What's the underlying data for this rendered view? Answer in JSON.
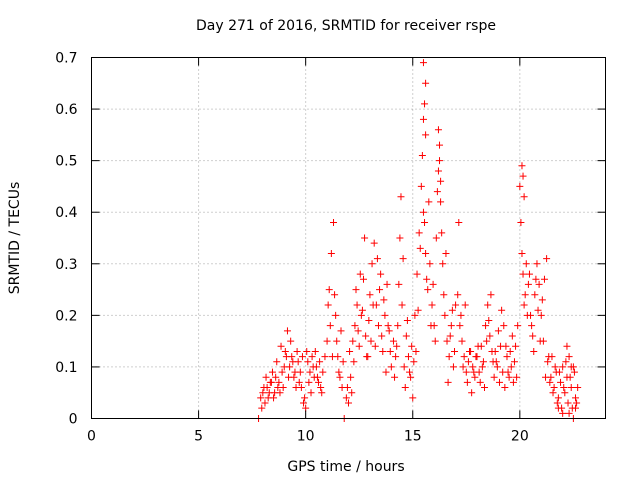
{
  "chart_data": {
    "type": "scatter",
    "title": "Day 271 of 2016, SRMTID for receiver rspe",
    "xlabel": "GPS time / hours",
    "ylabel": "SRMTID / TECUs",
    "xlim": [
      0,
      24
    ],
    "ylim": [
      0,
      0.7
    ],
    "xticks": [
      0,
      5,
      10,
      15,
      20
    ],
    "yticks": [
      0,
      0.1,
      0.2,
      0.3,
      0.4,
      0.5,
      0.6,
      0.7
    ],
    "xtick_labels": [
      "0",
      "5",
      "10",
      "15",
      "20"
    ],
    "ytick_labels": [
      "0",
      "0.1",
      "0.2",
      "0.3",
      "0.4",
      "0.5",
      "0.6",
      "0.7"
    ],
    "grid": true,
    "marker": "plus",
    "color": "#ff0000",
    "series": [
      {
        "x": [
          7.8,
          11.8,
          7.9,
          8.0,
          8.1,
          8.2,
          8.3,
          8.4,
          8.5,
          8.6,
          8.7,
          8.8,
          8.9,
          9.0,
          9.1,
          9.2,
          9.3,
          9.4,
          9.5,
          9.6,
          9.7,
          9.8,
          9.9,
          10.0,
          10.1,
          10.2,
          10.3,
          10.4,
          10.5,
          10.6,
          10.7,
          10.8,
          10.9,
          7.95,
          8.05,
          8.15,
          8.25,
          8.35,
          8.45,
          8.55,
          8.65,
          8.75,
          8.85,
          8.95,
          9.05,
          9.15,
          9.25,
          9.35,
          9.45,
          9.55,
          9.65,
          9.75,
          9.85,
          9.95,
          10.05,
          10.15,
          10.25,
          10.35,
          10.45,
          10.55,
          10.65,
          10.75,
          11.0,
          11.1,
          11.2,
          11.3,
          11.4,
          11.5,
          11.6,
          11.7,
          11.9,
          12.0,
          12.1,
          12.2,
          12.3,
          12.4,
          12.5,
          12.6,
          12.7,
          12.8,
          12.9,
          13.0,
          13.1,
          13.2,
          13.3,
          13.4,
          13.5,
          13.6,
          13.7,
          13.8,
          13.9,
          14.0,
          11.05,
          11.15,
          11.25,
          11.35,
          11.45,
          11.55,
          11.65,
          11.75,
          11.95,
          12.05,
          12.15,
          12.25,
          12.35,
          12.45,
          12.55,
          12.65,
          12.75,
          12.85,
          12.95,
          13.05,
          13.15,
          13.25,
          13.35,
          13.45,
          13.55,
          13.65,
          13.75,
          13.85,
          13.95,
          14.1,
          14.2,
          14.3,
          14.4,
          14.5,
          14.6,
          14.7,
          14.8,
          14.9,
          15.0,
          15.1,
          15.2,
          15.3,
          15.4,
          15.5,
          15.6,
          15.7,
          15.8,
          15.9,
          16.0,
          16.1,
          16.2,
          16.3,
          16.4,
          16.5,
          16.6,
          16.7,
          16.8,
          16.9,
          17.0,
          14.15,
          14.25,
          14.35,
          14.45,
          14.55,
          14.65,
          14.75,
          14.85,
          14.95,
          15.05,
          15.15,
          15.25,
          15.35,
          15.45,
          15.55,
          15.65,
          15.75,
          15.85,
          15.95,
          16.05,
          16.15,
          16.25,
          16.35,
          16.45,
          16.55,
          16.65,
          16.75,
          16.85,
          16.95,
          15.5,
          15.55,
          15.6,
          15.5,
          15.6,
          16.2,
          16.25,
          16.3,
          17.1,
          17.2,
          17.3,
          17.4,
          17.5,
          17.6,
          17.7,
          17.8,
          17.9,
          18.0,
          18.1,
          18.2,
          18.3,
          18.4,
          18.5,
          18.6,
          18.7,
          18.8,
          18.9,
          19.0,
          19.1,
          19.2,
          19.3,
          19.4,
          19.5,
          19.6,
          19.7,
          19.8,
          19.9,
          17.15,
          17.25,
          17.35,
          17.45,
          17.55,
          17.65,
          17.75,
          17.85,
          17.95,
          18.05,
          18.15,
          18.25,
          18.35,
          18.45,
          18.55,
          18.65,
          18.75,
          18.85,
          18.95,
          19.05,
          19.15,
          19.25,
          19.35,
          19.45,
          19.55,
          19.65,
          19.75,
          19.85,
          20.0,
          20.05,
          20.1,
          20.15,
          20.2,
          20.3,
          20.4,
          20.5,
          20.6,
          20.7,
          20.8,
          20.9,
          21.0,
          21.1,
          21.2,
          21.3,
          21.4,
          21.5,
          21.6,
          21.7,
          21.8,
          21.9,
          22.0,
          22.1,
          22.2,
          22.3,
          22.4,
          22.5,
          22.6,
          22.7,
          20.25,
          20.35,
          20.45,
          20.55,
          20.65,
          20.75,
          20.85,
          20.95,
          21.05,
          21.15,
          21.25,
          21.35,
          21.45,
          21.55,
          21.65,
          21.75,
          21.85,
          21.95,
          22.05,
          22.15,
          22.25,
          22.35,
          22.45,
          22.55,
          22.65,
          20.1,
          20.15,
          20.2,
          22.3,
          22.5,
          22.6,
          22.0,
          21.8,
          22.2,
          22.4
        ],
        "y": [
          0.0,
          0.0,
          0.04,
          0.05,
          0.03,
          0.06,
          0.05,
          0.07,
          0.04,
          0.08,
          0.06,
          0.05,
          0.09,
          0.1,
          0.12,
          0.08,
          0.15,
          0.11,
          0.09,
          0.13,
          0.07,
          0.06,
          0.03,
          0.02,
          0.11,
          0.09,
          0.12,
          0.08,
          0.1,
          0.07,
          0.06,
          0.09,
          0.12,
          0.02,
          0.06,
          0.08,
          0.04,
          0.07,
          0.09,
          0.05,
          0.11,
          0.07,
          0.14,
          0.06,
          0.13,
          0.17,
          0.1,
          0.12,
          0.08,
          0.06,
          0.11,
          0.09,
          0.12,
          0.04,
          0.13,
          0.07,
          0.05,
          0.1,
          0.13,
          0.08,
          0.11,
          0.05,
          0.15,
          0.25,
          0.32,
          0.38,
          0.2,
          0.12,
          0.08,
          0.06,
          0.04,
          0.03,
          0.08,
          0.15,
          0.18,
          0.22,
          0.14,
          0.2,
          0.27,
          0.16,
          0.12,
          0.24,
          0.3,
          0.34,
          0.22,
          0.18,
          0.28,
          0.13,
          0.2,
          0.26,
          0.17,
          0.1,
          0.22,
          0.18,
          0.12,
          0.24,
          0.15,
          0.09,
          0.17,
          0.11,
          0.06,
          0.13,
          0.05,
          0.11,
          0.25,
          0.17,
          0.28,
          0.21,
          0.35,
          0.12,
          0.19,
          0.15,
          0.22,
          0.14,
          0.31,
          0.25,
          0.16,
          0.23,
          0.09,
          0.18,
          0.13,
          0.15,
          0.12,
          0.18,
          0.35,
          0.22,
          0.1,
          0.16,
          0.12,
          0.08,
          0.04,
          0.2,
          0.28,
          0.36,
          0.45,
          0.4,
          0.32,
          0.25,
          0.3,
          0.22,
          0.18,
          0.35,
          0.48,
          0.42,
          0.3,
          0.2,
          0.15,
          0.12,
          0.18,
          0.1,
          0.22,
          0.08,
          0.14,
          0.26,
          0.43,
          0.31,
          0.06,
          0.19,
          0.09,
          0.14,
          0.11,
          0.13,
          0.21,
          0.33,
          0.51,
          0.38,
          0.27,
          0.42,
          0.18,
          0.26,
          0.15,
          0.44,
          0.53,
          0.36,
          0.24,
          0.32,
          0.07,
          0.16,
          0.21,
          0.13,
          0.69,
          0.61,
          0.65,
          0.58,
          0.55,
          0.56,
          0.5,
          0.46,
          0.24,
          0.18,
          0.15,
          0.12,
          0.09,
          0.11,
          0.13,
          0.1,
          0.08,
          0.12,
          0.09,
          0.14,
          0.11,
          0.18,
          0.22,
          0.16,
          0.13,
          0.08,
          0.11,
          0.17,
          0.14,
          0.09,
          0.06,
          0.12,
          0.08,
          0.1,
          0.07,
          0.14,
          0.18,
          0.38,
          0.2,
          0.1,
          0.22,
          0.07,
          0.13,
          0.05,
          0.09,
          0.12,
          0.14,
          0.07,
          0.1,
          0.06,
          0.15,
          0.19,
          0.24,
          0.11,
          0.13,
          0.1,
          0.07,
          0.21,
          0.18,
          0.14,
          0.09,
          0.13,
          0.16,
          0.11,
          0.08,
          0.45,
          0.38,
          0.32,
          0.28,
          0.22,
          0.3,
          0.26,
          0.2,
          0.16,
          0.24,
          0.3,
          0.26,
          0.2,
          0.15,
          0.08,
          0.11,
          0.07,
          0.12,
          0.06,
          0.09,
          0.04,
          0.07,
          0.1,
          0.05,
          0.08,
          0.12,
          0.06,
          0.1,
          0.04,
          0.06,
          0.24,
          0.2,
          0.28,
          0.18,
          0.13,
          0.27,
          0.21,
          0.15,
          0.23,
          0.27,
          0.31,
          0.12,
          0.08,
          0.05,
          0.1,
          0.03,
          0.09,
          0.02,
          0.06,
          0.11,
          0.03,
          0.08,
          0.02,
          0.09,
          0.03,
          0.49,
          0.47,
          0.43,
          0.01,
          0.0,
          0.02,
          0.01,
          0.02,
          0.14,
          0.1
        ]
      }
    ]
  }
}
